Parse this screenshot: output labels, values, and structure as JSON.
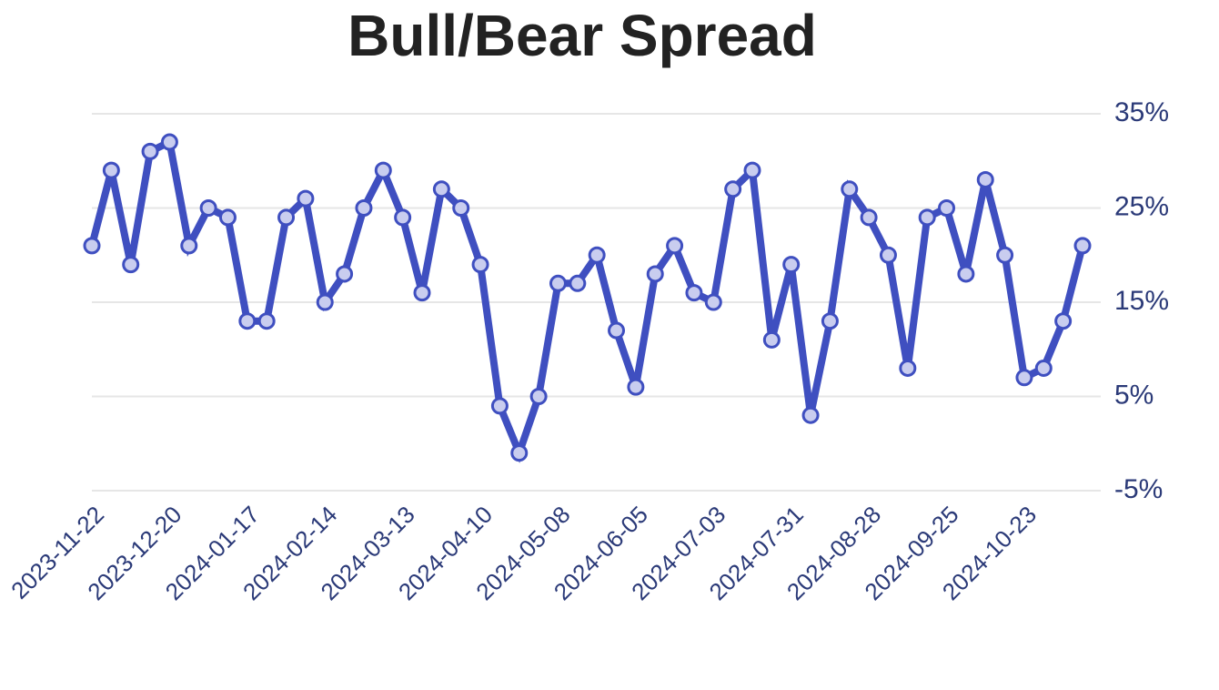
{
  "chart_data": {
    "type": "line",
    "title": "Bull/Bear Spread",
    "categories": [
      "2023-11-22",
      null,
      null,
      null,
      "2023-12-20",
      null,
      null,
      null,
      "2024-01-17",
      null,
      null,
      null,
      "2024-02-14",
      null,
      null,
      null,
      "2024-03-13",
      null,
      null,
      null,
      "2024-04-10",
      null,
      null,
      null,
      "2024-05-08",
      null,
      null,
      null,
      "2024-06-05",
      null,
      null,
      null,
      "2024-07-03",
      null,
      null,
      null,
      "2024-07-31",
      null,
      null,
      null,
      "2024-08-28",
      null,
      null,
      null,
      "2024-09-25",
      null,
      null,
      null,
      "2024-10-23",
      null,
      null,
      null
    ],
    "series": [
      {
        "color": "#3f4fc0",
        "values": [
          21,
          29,
          19,
          31,
          32,
          21,
          25,
          24,
          13,
          13,
          24,
          26,
          15,
          18,
          25,
          29,
          24,
          16,
          27,
          25,
          19,
          4,
          -1,
          5,
          17,
          17,
          20,
          12,
          6,
          18,
          21,
          16,
          15,
          27,
          29,
          11,
          19,
          3,
          13,
          27,
          24,
          20,
          8,
          24,
          25,
          18,
          28,
          20,
          7,
          8,
          13,
          21
        ]
      }
    ],
    "ylim": [
      -5,
      35
    ],
    "yticks": [
      {
        "value": -5,
        "label": "-5%"
      },
      {
        "value": 5,
        "label": "5%"
      },
      {
        "value": 15,
        "label": "15%"
      },
      {
        "value": 25,
        "label": "25%"
      },
      {
        "value": 35,
        "label": "35%"
      }
    ],
    "grid": true
  }
}
